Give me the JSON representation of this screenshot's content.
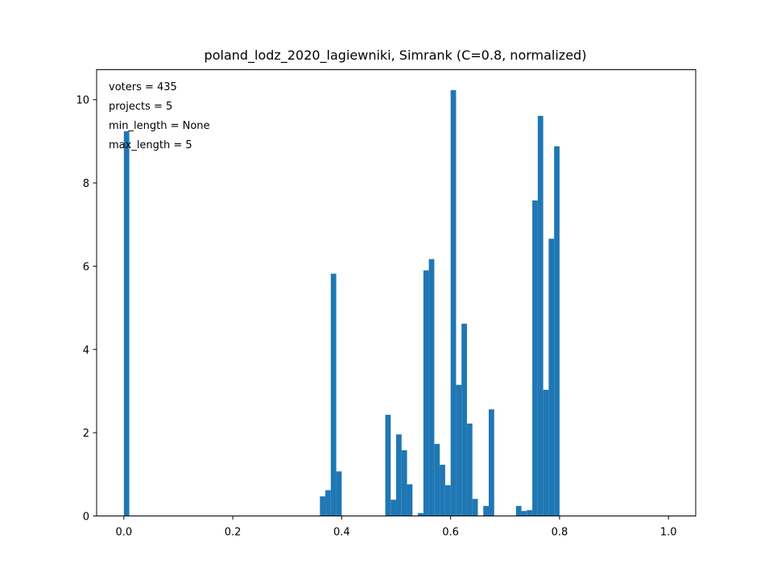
{
  "chart_data": {
    "type": "bar",
    "title": "poland_lodz_2020_lagiewniki, Simrank (C=0.8, normalized)",
    "xlabel": "",
    "ylabel": "",
    "xlim": [
      -0.05,
      1.05
    ],
    "ylim": [
      0,
      10.72
    ],
    "grid": false,
    "bin_width": 0.01,
    "bar_color": "#1f77b4",
    "x_ticks": [
      {
        "value": 0.0,
        "label": "0.0"
      },
      {
        "value": 0.2,
        "label": "0.2"
      },
      {
        "value": 0.4,
        "label": "0.4"
      },
      {
        "value": 0.6,
        "label": "0.6"
      },
      {
        "value": 0.8,
        "label": "0.8"
      },
      {
        "value": 1.0,
        "label": "1.0"
      }
    ],
    "y_ticks": [
      {
        "value": 0,
        "label": "0"
      },
      {
        "value": 2,
        "label": "2"
      },
      {
        "value": 4,
        "label": "4"
      },
      {
        "value": 6,
        "label": "6"
      },
      {
        "value": 8,
        "label": "8"
      },
      {
        "value": 10,
        "label": "10"
      }
    ],
    "annotation_lines": [
      "voters = 435",
      "projects = 5",
      "min_length = None",
      "max_length = 5"
    ],
    "bins": [
      {
        "x": 0.0,
        "value": 9.24
      },
      {
        "x": 0.36,
        "value": 0.47
      },
      {
        "x": 0.37,
        "value": 0.62
      },
      {
        "x": 0.38,
        "value": 5.82
      },
      {
        "x": 0.39,
        "value": 1.07
      },
      {
        "x": 0.48,
        "value": 2.43
      },
      {
        "x": 0.49,
        "value": 0.39
      },
      {
        "x": 0.5,
        "value": 1.96
      },
      {
        "x": 0.51,
        "value": 1.58
      },
      {
        "x": 0.52,
        "value": 0.76
      },
      {
        "x": 0.54,
        "value": 0.07
      },
      {
        "x": 0.55,
        "value": 5.9
      },
      {
        "x": 0.56,
        "value": 6.17
      },
      {
        "x": 0.57,
        "value": 1.73
      },
      {
        "x": 0.58,
        "value": 1.23
      },
      {
        "x": 0.59,
        "value": 0.74
      },
      {
        "x": 0.6,
        "value": 10.23
      },
      {
        "x": 0.61,
        "value": 3.15
      },
      {
        "x": 0.62,
        "value": 4.62
      },
      {
        "x": 0.63,
        "value": 2.22
      },
      {
        "x": 0.64,
        "value": 0.41
      },
      {
        "x": 0.66,
        "value": 0.24
      },
      {
        "x": 0.67,
        "value": 2.56
      },
      {
        "x": 0.72,
        "value": 0.24
      },
      {
        "x": 0.73,
        "value": 0.12
      },
      {
        "x": 0.74,
        "value": 0.14
      },
      {
        "x": 0.75,
        "value": 7.58
      },
      {
        "x": 0.76,
        "value": 9.61
      },
      {
        "x": 0.77,
        "value": 3.03
      },
      {
        "x": 0.78,
        "value": 6.66
      },
      {
        "x": 0.79,
        "value": 8.88
      }
    ]
  }
}
